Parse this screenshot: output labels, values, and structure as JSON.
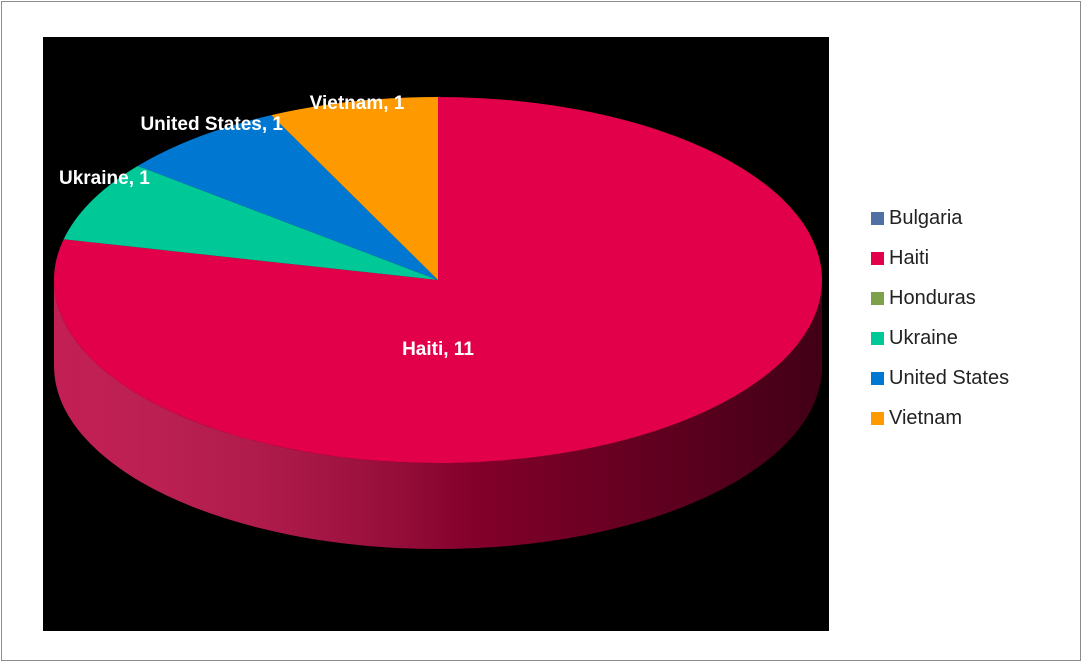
{
  "chart_data": {
    "type": "pie",
    "style": "3d",
    "categories": [
      "Bulgaria",
      "Haiti",
      "Honduras",
      "Ukraine",
      "United States",
      "Vietnam"
    ],
    "values": [
      0,
      11,
      0,
      1,
      1,
      1
    ],
    "colors": [
      "#4f6fa5",
      "#e3004a",
      "#7fa04a",
      "#00c896",
      "#0078d2",
      "#ff9900"
    ],
    "data_labels": [
      "",
      "Haiti, 11",
      "",
      "Ukraine, 1",
      "United States, 1",
      "Vietnam, 1"
    ],
    "title": "",
    "legend_position": "right",
    "plot_background": "#000000"
  }
}
